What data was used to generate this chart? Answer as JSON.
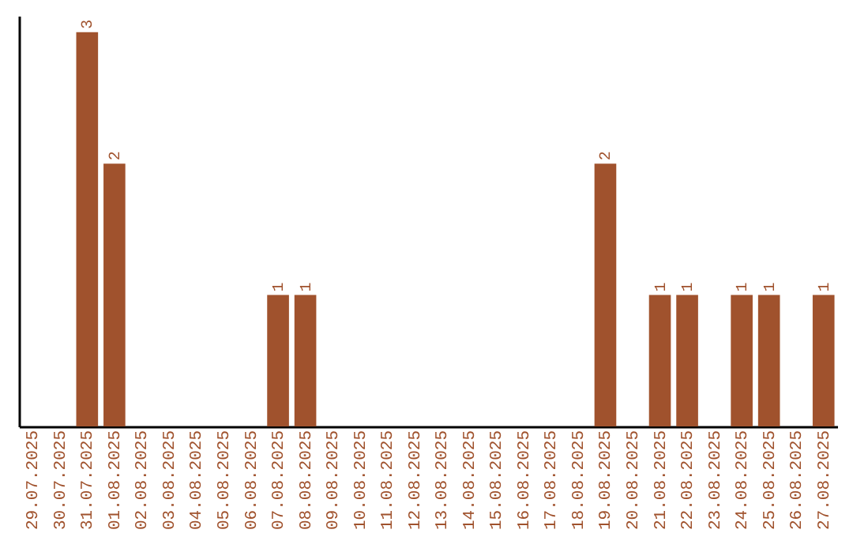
{
  "chart_data": {
    "type": "bar",
    "categories": [
      "29.07.2025",
      "30.07.2025",
      "31.07.2025",
      "01.08.2025",
      "02.08.2025",
      "03.08.2025",
      "04.08.2025",
      "05.08.2025",
      "06.08.2025",
      "07.08.2025",
      "08.08.2025",
      "09.08.2025",
      "10.08.2025",
      "11.08.2025",
      "12.08.2025",
      "13.08.2025",
      "14.08.2025",
      "15.08.2025",
      "16.08.2025",
      "17.08.2025",
      "18.08.2025",
      "19.08.2025",
      "20.08.2025",
      "21.08.2025",
      "22.08.2025",
      "23.08.2025",
      "24.08.2025",
      "25.08.2025",
      "26.08.2025",
      "27.08.2025"
    ],
    "values": [
      0,
      0,
      3,
      2,
      0,
      0,
      0,
      0,
      0,
      1,
      1,
      0,
      0,
      0,
      0,
      0,
      0,
      0,
      0,
      0,
      0,
      2,
      0,
      1,
      1,
      0,
      1,
      1,
      0,
      1
    ],
    "value_labels": [
      null,
      null,
      "3",
      "2",
      null,
      null,
      null,
      null,
      null,
      "1",
      "1",
      null,
      null,
      null,
      null,
      null,
      null,
      null,
      null,
      null,
      null,
      "2",
      null,
      "1",
      "1",
      null,
      "1",
      "1",
      null,
      "1"
    ],
    "color": "#a0522d",
    "ylim": [
      0,
      3.125
    ],
    "tick_labels": "x",
    "grid": false
  }
}
